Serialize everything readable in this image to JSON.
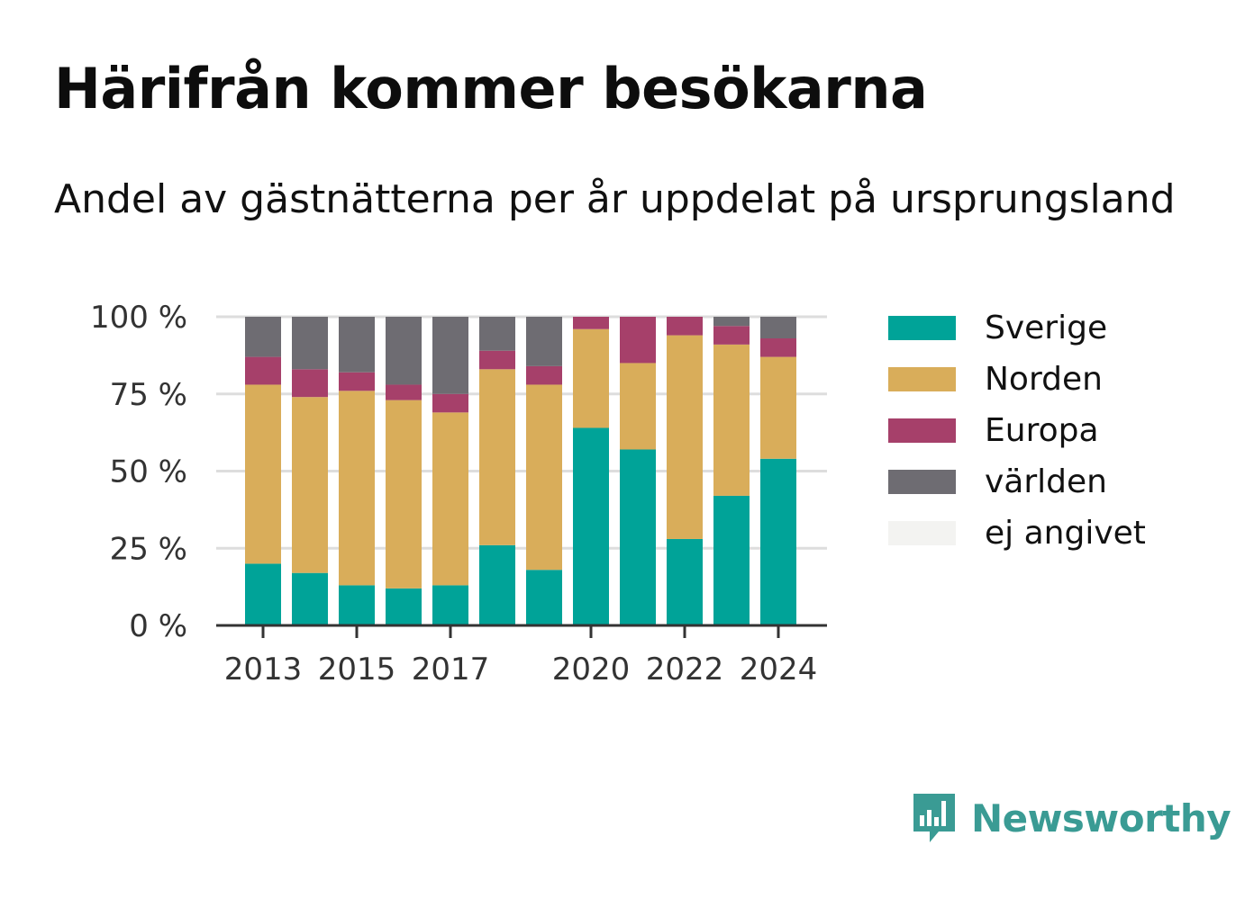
{
  "title": "Härifrån kommer besökarna",
  "subtitle": "Andel av gästnätterna per år uppdelat på ursprungsland",
  "brand": "Newsworthy",
  "colors": {
    "Sverige": "#00a398",
    "Norden": "#d9ad5a",
    "Europa": "#a6406a",
    "världen": "#6e6c72",
    "ej angivet": "#f3f3f1",
    "grid": "#dddddd",
    "axis": "#333333"
  },
  "legend": [
    "Sverige",
    "Norden",
    "Europa",
    "världen",
    "ej angivet"
  ],
  "chart_data": {
    "type": "bar",
    "stacked": true,
    "categories": [
      2013,
      2014,
      2015,
      2016,
      2017,
      2018,
      2019,
      2020,
      2021,
      2022,
      2023,
      2024
    ],
    "x_tick_labels": [
      "2013",
      "2015",
      "2017",
      "2020",
      "2022",
      "2024"
    ],
    "y_tick_labels": [
      "0 %",
      "25 %",
      "50 %",
      "75 %",
      "100 %"
    ],
    "ylim": [
      0,
      100
    ],
    "grid": true,
    "legend_position": "right",
    "series": [
      {
        "name": "Sverige",
        "values": [
          20,
          17,
          13,
          12,
          13,
          26,
          18,
          64,
          57,
          28,
          42,
          54
        ]
      },
      {
        "name": "Norden",
        "values": [
          58,
          57,
          63,
          61,
          56,
          57,
          60,
          32,
          28,
          66,
          49,
          33
        ]
      },
      {
        "name": "Europa",
        "values": [
          9,
          9,
          6,
          5,
          6,
          6,
          6,
          4,
          15,
          6,
          6,
          6
        ]
      },
      {
        "name": "världen",
        "values": [
          13,
          17,
          18,
          22,
          25,
          11,
          16,
          0,
          0,
          0,
          3,
          7
        ]
      },
      {
        "name": "ej angivet",
        "values": [
          0,
          0,
          0,
          0,
          0,
          0,
          0,
          0,
          0,
          0,
          0,
          0
        ]
      }
    ]
  }
}
